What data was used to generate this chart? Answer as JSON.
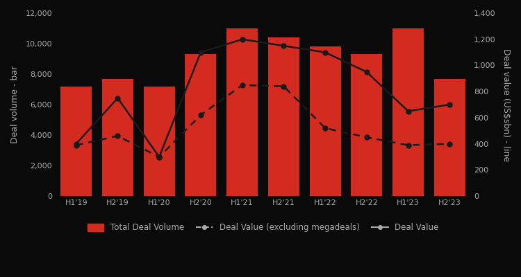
{
  "categories": [
    "H1'19",
    "H2'19",
    "H1'20",
    "H2'20",
    "H1'21",
    "H2'21",
    "H1'22",
    "H2'22",
    "H1'23",
    "H2'23"
  ],
  "bar_values": [
    7200,
    7700,
    7200,
    9300,
    11000,
    10400,
    9800,
    9300,
    11000,
    7700
  ],
  "deal_value": [
    400,
    750,
    300,
    1100,
    1200,
    1150,
    1100,
    950,
    650,
    700
  ],
  "deal_value_ex_mega": [
    390,
    460,
    300,
    620,
    850,
    840,
    520,
    450,
    390,
    400
  ],
  "bar_color": "#d42b20",
  "line_color": "#1a1a1a",
  "background_color": "#0a0a0a",
  "text_color": "#aaaaaa",
  "ylabel_left": "Deal volume - bar",
  "ylabel_right": "Deal value (US$sbn) - line",
  "ylim_left": [
    0,
    12000
  ],
  "ylim_right": [
    0,
    1400
  ],
  "yticks_left": [
    0,
    2000,
    4000,
    6000,
    8000,
    10000,
    12000
  ],
  "yticks_right": [
    0,
    200,
    400,
    600,
    800,
    1000,
    1200,
    1400
  ],
  "legend_labels": [
    "Total Deal Volume",
    "Deal Value (excluding megadeals)",
    "Deal Value"
  ],
  "figsize": [
    7.5,
    4.0
  ],
  "dpi": 100
}
